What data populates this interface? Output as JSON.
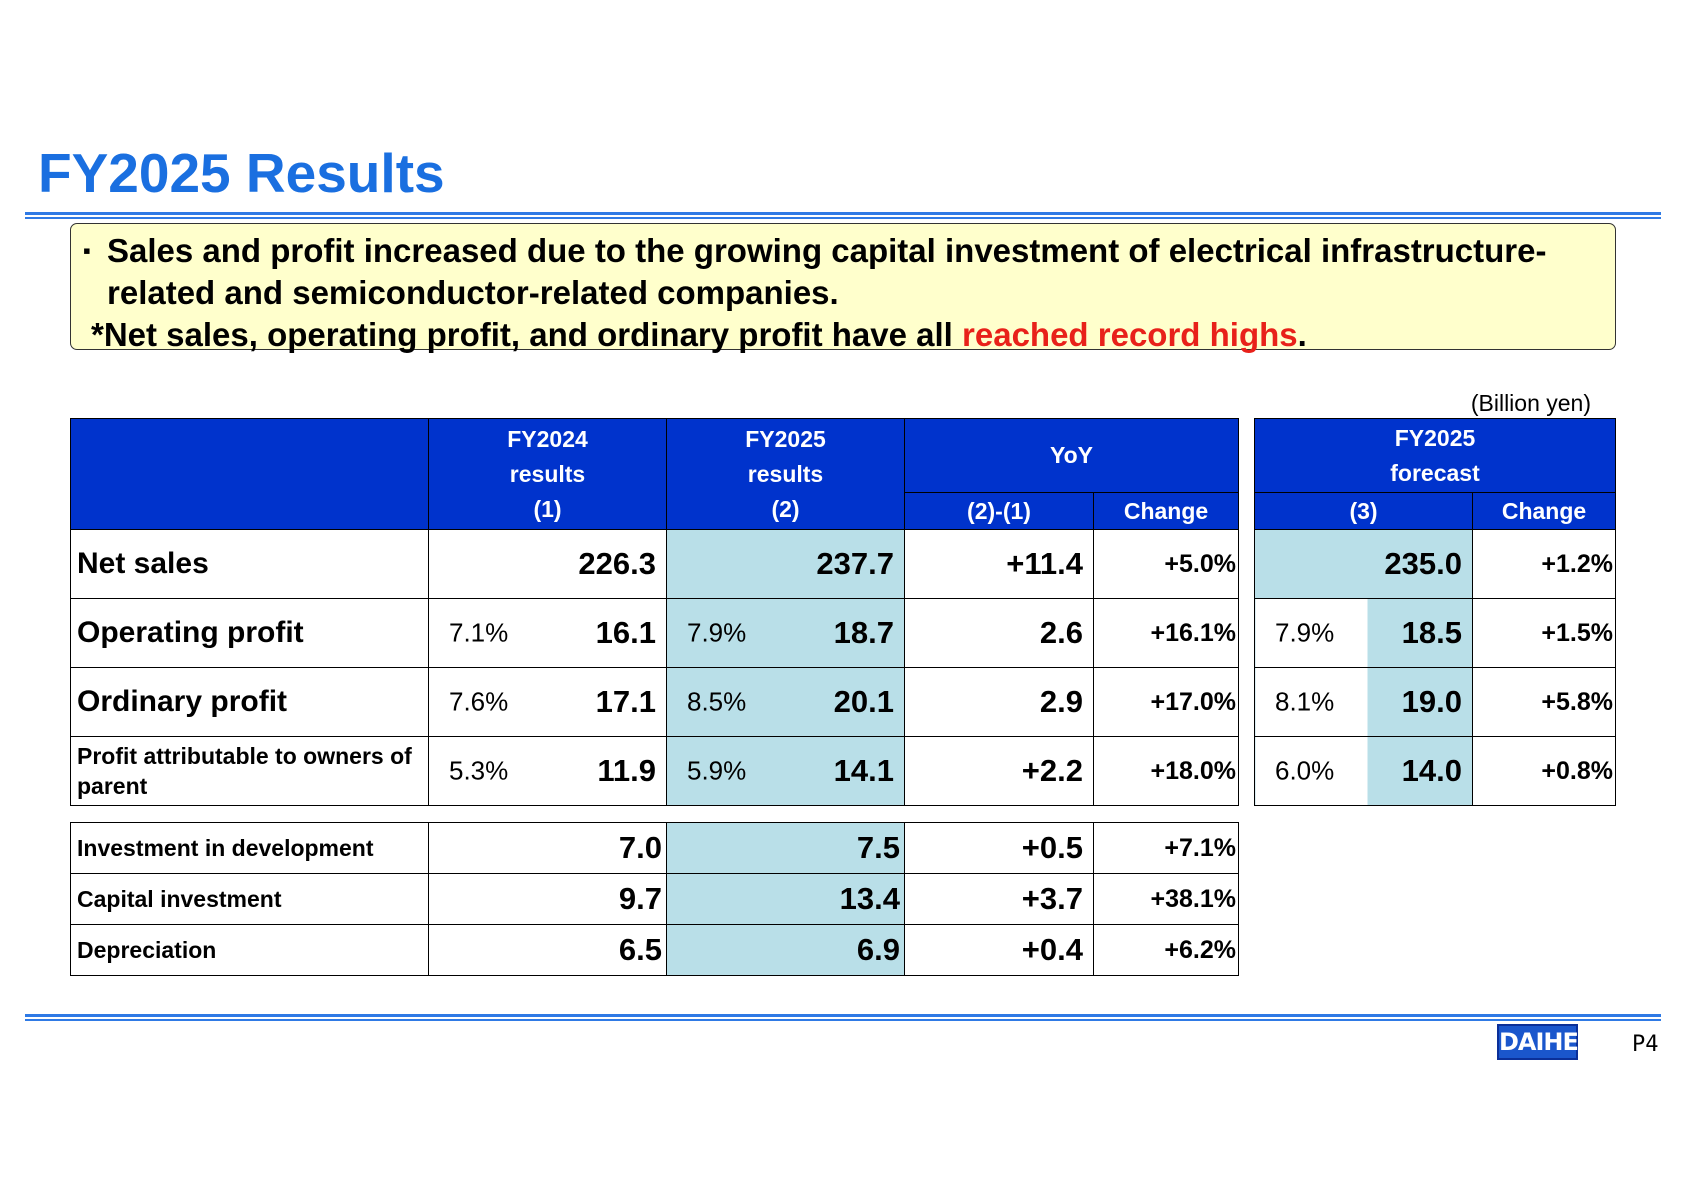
{
  "title": "FY2025 Results",
  "summary": {
    "bullet": "▪",
    "line1": "Sales and profit increased due to the growing capital investment of electrical infrastructure-related and semiconductor-related companies.",
    "line2_prefix": "*Net sales, operating profit, and ordinary profit have all ",
    "line2_highlight": "reached record highs",
    "line2_suffix": "."
  },
  "unit": "(Billion yen)",
  "main_table": {
    "headers": {
      "fy2024": [
        "FY2024",
        "results",
        "(1)"
      ],
      "fy2025": [
        "FY2025",
        "results",
        "(2)"
      ],
      "yoy": "YoY",
      "yoy_diff": "(2)-(1)",
      "yoy_change": "Change",
      "forecast": [
        "FY2025",
        "forecast"
      ],
      "forecast_col": "(3)",
      "forecast_change": "Change"
    },
    "rows": [
      {
        "label": "Net sales",
        "fy2024_pct": "",
        "fy2024": "226.3",
        "fy2025_pct": "",
        "fy2025": "237.7",
        "diff": "+11.4",
        "change": "+5.0%",
        "fc_pct": "",
        "fc": "235.0",
        "fc_change": "+1.2%"
      },
      {
        "label": "Operating profit",
        "fy2024_pct": "7.1%",
        "fy2024": "16.1",
        "fy2025_pct": "7.9%",
        "fy2025": "18.7",
        "diff": "2.6",
        "change": "+16.1%",
        "fc_pct": "7.9%",
        "fc": "18.5",
        "fc_change": "+1.5%"
      },
      {
        "label": "Ordinary profit",
        "fy2024_pct": "7.6%",
        "fy2024": "17.1",
        "fy2025_pct": "8.5%",
        "fy2025": "20.1",
        "diff": "2.9",
        "change": "+17.0%",
        "fc_pct": "8.1%",
        "fc": "19.0",
        "fc_change": "+5.8%"
      },
      {
        "label": "Profit attributable to owners of parent",
        "fy2024_pct": "5.3%",
        "fy2024": "11.9",
        "fy2025_pct": "5.9%",
        "fy2025": "14.1",
        "diff": "+2.2",
        "change": "+18.0%",
        "fc_pct": "6.0%",
        "fc": "14.0",
        "fc_change": "+0.8%"
      }
    ]
  },
  "sub_table": {
    "rows": [
      {
        "label": "Investment in development",
        "fy2024": "7.0",
        "fy2025": "7.5",
        "diff": "+0.5",
        "change": "+7.1%"
      },
      {
        "label": "Capital investment",
        "fy2024": "9.7",
        "fy2025": "13.4",
        "diff": "+3.7",
        "change": "+38.1%"
      },
      {
        "label": "Depreciation",
        "fy2024": "6.5",
        "fy2025": "6.9",
        "diff": "+0.4",
        "change": "+6.2%"
      }
    ]
  },
  "footer": {
    "logo": "DAIHEN",
    "page": "P4"
  },
  "colors": {
    "title": "#1a6fe0",
    "header_bg": "#0033cc",
    "highlight_cell": "#b9dfe8",
    "note_bg": "#ffffcc",
    "record_red": "#e8211a"
  }
}
